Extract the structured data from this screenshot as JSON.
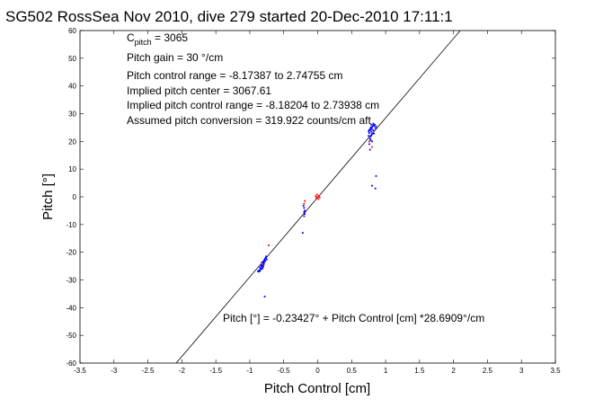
{
  "chart_data": {
    "type": "scatter",
    "title": "SG502 RossSea Nov 2010, dive 279 started 20-Dec-2010 17:11:1",
    "xlabel": "Pitch Control [cm]",
    "ylabel": "Pitch [°]",
    "xlim": [
      -3.5,
      3.5
    ],
    "ylim": [
      -60,
      60
    ],
    "x_ticks": [
      "-3.5",
      "-3",
      "-2.5",
      "-2",
      "-1.5",
      "-1",
      "-0.5",
      "0",
      "0.5",
      "1",
      "1.5",
      "2",
      "2.5",
      "3",
      "3.5"
    ],
    "y_ticks": [
      "-60",
      "-50",
      "-40",
      "-30",
      "-20",
      "-10",
      "0",
      "10",
      "20",
      "30",
      "40",
      "50",
      "60"
    ],
    "grid": false,
    "annotations": {
      "c_pitch_prefix": "C",
      "c_pitch_sub": "pitch",
      "c_pitch_value": " = 3065",
      "pitch_gain": "Pitch gain = 30 °/cm",
      "control_range": "Pitch control range = -8.17387 to 2.74755 cm",
      "implied_center": "Implied pitch center = 3067.61",
      "implied_range": "Implied pitch control range = -8.18204 to 2.73938 cm",
      "assumed_conversion": "Assumed pitch conversion = 319.922 counts/cm aft",
      "fit_equation": "Pitch [°] = -0.23427° + Pitch Control [cm] *28.6909°/cm"
    },
    "fit_line": {
      "intercept": -0.23427,
      "slope": 28.6909,
      "color": "#000000"
    },
    "series": [
      {
        "color": "#0000ff",
        "points": [
          [
            -0.85,
            -25.5
          ],
          [
            -0.84,
            -26.0
          ],
          [
            -0.83,
            -24.8
          ],
          [
            -0.82,
            -25.2
          ],
          [
            -0.8,
            -24.0
          ],
          [
            -0.79,
            -23.5
          ],
          [
            -0.78,
            -22.8
          ],
          [
            -0.77,
            -23.2
          ],
          [
            -0.76,
            -22.0
          ],
          [
            -0.81,
            -25.8
          ],
          [
            -0.86,
            -26.5
          ],
          [
            -0.87,
            -27.0
          ],
          [
            -0.83,
            -25.0
          ],
          [
            -0.8,
            -23.8
          ],
          [
            -0.78,
            -22.5
          ],
          [
            -0.82,
            -24.6
          ],
          [
            -0.84,
            -26.2
          ],
          [
            -0.76,
            -21.5
          ],
          [
            -0.79,
            -24.2
          ],
          [
            -0.81,
            -25.4
          ],
          [
            -0.85,
            -26.8
          ],
          [
            -0.77,
            -22.2
          ],
          [
            -0.83,
            -26.0
          ],
          [
            -0.8,
            -25.0
          ],
          [
            -0.88,
            -26.8
          ],
          [
            -0.75,
            -22.6
          ],
          [
            -0.79,
            -23.0
          ],
          [
            -0.82,
            -23.6
          ],
          [
            -0.78,
            -36.0
          ],
          [
            -0.2,
            -4.0
          ],
          [
            -0.2,
            -5.5
          ],
          [
            -0.19,
            -6.2
          ],
          [
            -0.2,
            -7.0
          ],
          [
            -0.21,
            -3.2
          ],
          [
            -0.19,
            -5.0
          ],
          [
            -0.22,
            -13.0
          ],
          [
            0.75,
            22.0
          ],
          [
            0.76,
            23.0
          ],
          [
            0.77,
            24.0
          ],
          [
            0.78,
            25.0
          ],
          [
            0.79,
            23.5
          ],
          [
            0.8,
            24.5
          ],
          [
            0.81,
            25.5
          ],
          [
            0.82,
            26.2
          ],
          [
            0.78,
            21.8
          ],
          [
            0.8,
            22.6
          ],
          [
            0.83,
            25.6
          ],
          [
            0.76,
            24.2
          ],
          [
            0.79,
            26.0
          ],
          [
            0.77,
            21.0
          ],
          [
            0.81,
            23.0
          ],
          [
            0.84,
            26.0
          ],
          [
            0.78,
            20.5
          ],
          [
            0.8,
            25.2
          ],
          [
            0.82,
            24.0
          ],
          [
            0.75,
            23.6
          ],
          [
            0.79,
            22.2
          ],
          [
            0.85,
            24.8
          ],
          [
            0.86,
            25.4
          ],
          [
            0.76,
            19.0
          ],
          [
            0.77,
            17.0
          ],
          [
            0.83,
            22.8
          ],
          [
            0.78,
            24.4
          ],
          [
            0.8,
            20.0
          ],
          [
            0.82,
            26.4
          ],
          [
            0.8,
            4.0
          ],
          [
            0.85,
            3.0
          ],
          [
            0.86,
            7.5
          ]
        ]
      },
      {
        "color": "#ff0000",
        "points": [
          [
            0.0,
            0.0
          ],
          [
            -0.02,
            -0.5
          ],
          [
            0.02,
            0.4
          ],
          [
            -0.01,
            0.8
          ],
          [
            0.01,
            -0.8
          ],
          [
            -0.03,
            0.2
          ],
          [
            0.03,
            -0.2
          ],
          [
            -0.19,
            -1.5
          ],
          [
            -0.2,
            -2.5
          ],
          [
            -0.72,
            -17.5
          ],
          [
            -0.8,
            -24.5
          ],
          [
            0.8,
            18.0
          ],
          [
            0.76,
            20.0
          ]
        ]
      }
    ]
  }
}
